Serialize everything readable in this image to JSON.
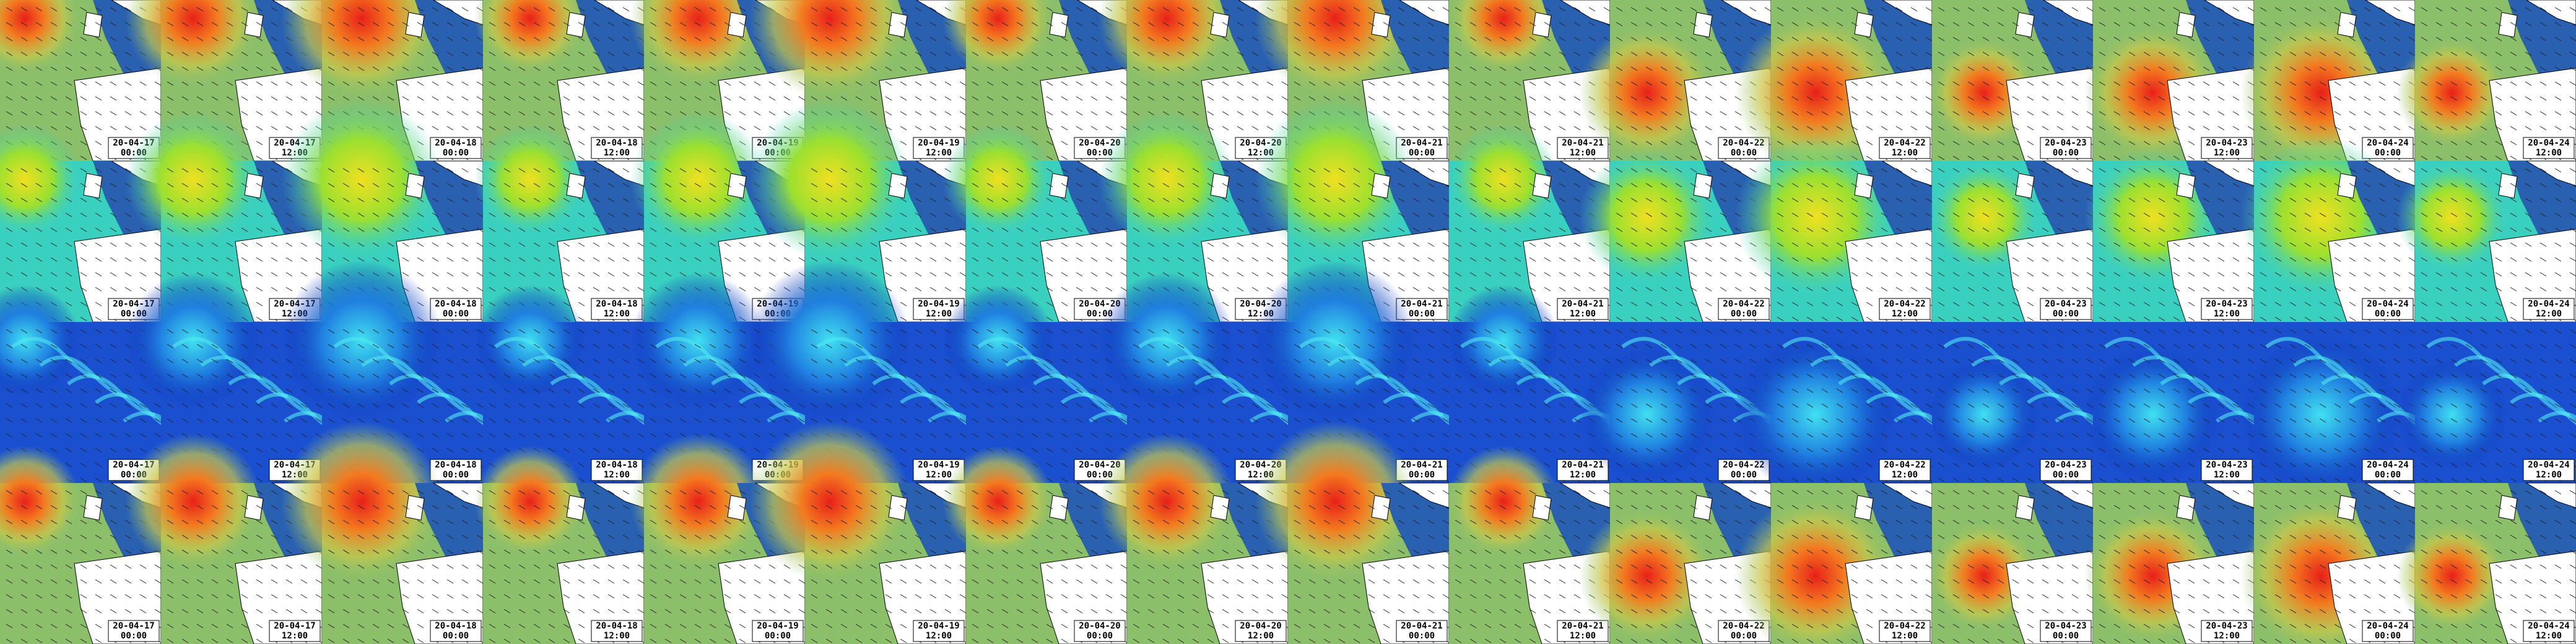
{
  "columns": [
    {
      "date": "20-04-17",
      "time": "00:00"
    },
    {
      "date": "20-04-17",
      "time": "12:00"
    },
    {
      "date": "20-04-18",
      "time": "00:00"
    },
    {
      "date": "20-04-18",
      "time": "12:00"
    },
    {
      "date": "20-04-19",
      "time": "00:00"
    },
    {
      "date": "20-04-19",
      "time": "12:00"
    },
    {
      "date": "20-04-20",
      "time": "00:00"
    },
    {
      "date": "20-04-20",
      "time": "12:00"
    },
    {
      "date": "20-04-21",
      "time": "00:00"
    },
    {
      "date": "20-04-21",
      "time": "12:00"
    },
    {
      "date": "20-04-22",
      "time": "00:00"
    },
    {
      "date": "20-04-22",
      "time": "12:00"
    },
    {
      "date": "20-04-23",
      "time": "00:00"
    },
    {
      "date": "20-04-23",
      "time": "12:00"
    },
    {
      "date": "20-04-24",
      "time": "00:00"
    },
    {
      "date": "20-04-24",
      "time": "12:00"
    }
  ]
}
